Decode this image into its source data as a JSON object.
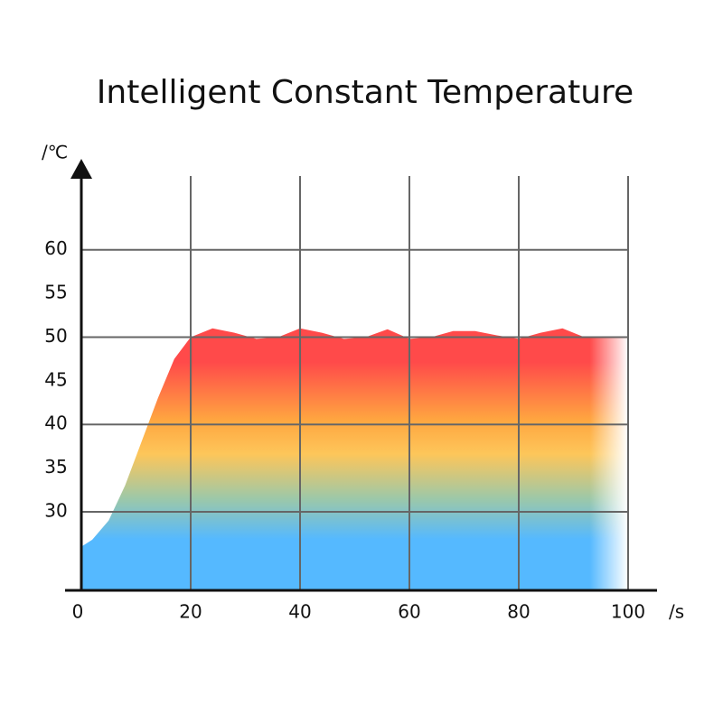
{
  "chart_data": {
    "type": "area",
    "title": "Intelligent Constant Temperature",
    "y_unit": "/℃",
    "x_unit": "/s",
    "x": [
      0,
      2,
      5,
      8,
      11,
      14,
      17,
      20,
      24,
      28,
      32,
      36,
      40,
      44,
      48,
      52,
      56,
      60,
      64,
      68,
      72,
      76,
      80,
      84,
      88,
      92,
      96,
      100
    ],
    "values": [
      26,
      26.8,
      29,
      33,
      38,
      43,
      47.5,
      50,
      51,
      50.5,
      49.8,
      50,
      51,
      50.5,
      49.8,
      50,
      50.9,
      49.8,
      50,
      50.7,
      50.7,
      50.2,
      49.8,
      50.5,
      51,
      50,
      50,
      50
    ],
    "xlim": [
      0,
      100
    ],
    "ylim": [
      21,
      70
    ],
    "xticks": [
      0,
      20,
      40,
      60,
      80,
      100
    ],
    "yticks": [
      30,
      35,
      40,
      45,
      50,
      55,
      60
    ],
    "grid": true,
    "colors": [
      "#ff4a4a",
      "#ff4a4a",
      "#ffa640",
      "#fdc65a",
      "#9dc8a8",
      "#55b9ff",
      "#55b9ff"
    ]
  }
}
